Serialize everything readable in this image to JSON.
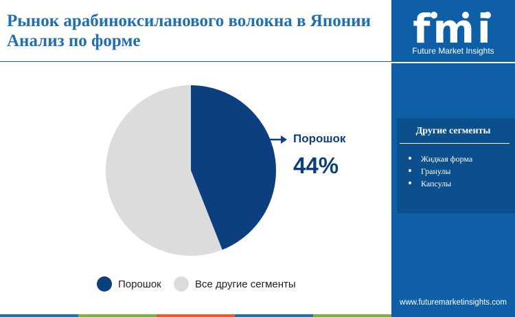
{
  "title": {
    "line1": "Рынок арабиноксиланового волокна в Японии",
    "line2": "Анализ по форме"
  },
  "brand": {
    "logo_text": "fmi",
    "tagline": "Future Market Insights",
    "website": "www.futuremarketinsights.com"
  },
  "sidebar": {
    "panel_title": "Другие сегменты",
    "items": [
      "Жидкая форма",
      "Гранулы",
      "Капсулы"
    ]
  },
  "chart_data": {
    "type": "pie",
    "title": "",
    "slices": [
      {
        "name": "Порошок",
        "value": 44,
        "color": "#0c3f7d"
      },
      {
        "name": "Все другие сегменты",
        "value": 56,
        "color": "#dcdcdc"
      }
    ],
    "callout": {
      "label": "Порошок",
      "value_text": "44%"
    },
    "legend_position": "bottom"
  },
  "colors": {
    "title": "#1f6fb2",
    "sidebar": "#0f5fa7",
    "panel": "#0b4f8c",
    "accent": "#0c3f7d",
    "bottom_bar": [
      "#1f6fb2",
      "#7cb342",
      "#e85a2c",
      "#1f6fb2",
      "#7cb342"
    ]
  }
}
